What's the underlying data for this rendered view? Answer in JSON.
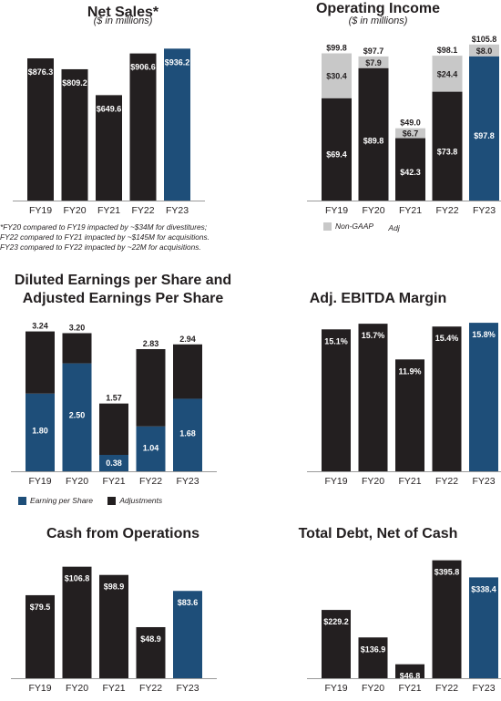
{
  "colors": {
    "dark": "#231f20",
    "blue": "#1e4e79",
    "adj": "#c8c8c8"
  },
  "net_sales": {
    "title": "Net Sales*",
    "subtitle": "($ in millions)",
    "footnotes": [
      "*FY20 compared to FY19 impacted by ~$34M for divestitures;",
      "FY22 compared to FY21 impacted by ~$145M for acquisitions.",
      "FY23 compared to FY22 impacted by ~22M for acquisitions."
    ]
  },
  "operating_income": {
    "title": "Operating Income",
    "subtitle": "($ in millions)",
    "legend": [
      "Non-GAAP",
      "Adj"
    ]
  },
  "eps": {
    "title_lines": [
      "Diluted Earnings per Share and",
      "Adjusted Earnings Per Share"
    ],
    "legend": [
      "Earning per Share",
      "Adjustments"
    ]
  },
  "ebitda": {
    "title": "Adj. EBITDA Margin"
  },
  "cash_ops": {
    "title": "Cash from Operations"
  },
  "debt": {
    "title": "Total Debt, Net of Cash"
  },
  "chart_data": [
    {
      "id": "net_sales",
      "type": "bar",
      "title": "Net Sales*",
      "subtitle": "($ in millions)",
      "categories": [
        "FY19",
        "FY20",
        "FY21",
        "FY22",
        "FY23"
      ],
      "values": [
        876.3,
        809.2,
        649.6,
        906.6,
        936.2
      ],
      "labels": [
        "$876.3",
        "$809.2",
        "$649.6",
        "$906.6",
        "$936.2"
      ],
      "ylim": [
        0,
        1000
      ],
      "highlight_last": true
    },
    {
      "id": "operating_income",
      "type": "bar",
      "stacked": true,
      "title": "Operating Income",
      "subtitle": "($ in millions)",
      "categories": [
        "FY19",
        "FY20",
        "FY21",
        "FY22",
        "FY23"
      ],
      "series": [
        {
          "values": [
            69.4,
            89.8,
            42.3,
            73.8,
            97.8
          ],
          "labels": [
            "$69.4",
            "$89.8",
            "$42.3",
            "$73.8",
            "$97.8"
          ]
        },
        {
          "values": [
            30.4,
            7.9,
            6.7,
            24.4,
            8.0
          ],
          "labels": [
            "$30.4",
            "$7.9",
            "$6.7",
            "$24.4",
            "$8.0"
          ]
        }
      ],
      "totals": [
        99.8,
        97.7,
        49.0,
        98.1,
        105.8
      ],
      "total_labels": [
        "$99.8",
        "$97.7",
        "$49.0",
        "$98.1",
        "$105.8"
      ],
      "ylim": [
        0,
        110
      ],
      "highlight_last": true
    },
    {
      "id": "eps",
      "type": "bar",
      "stacked": true,
      "title": "Diluted Earnings per Share and Adjusted Earnings Per Share",
      "categories": [
        "FY19",
        "FY20",
        "FY21",
        "FY22",
        "FY23"
      ],
      "series": [
        {
          "name": "Earning per Share",
          "values": [
            1.8,
            2.5,
            0.38,
            1.04,
            1.68
          ],
          "labels": [
            "1.80",
            "2.50",
            "0.38",
            "1.04",
            "1.68"
          ]
        },
        {
          "name": "Adjustments",
          "values": [
            1.44,
            0.7,
            1.19,
            1.79,
            1.26
          ]
        }
      ],
      "totals": [
        3.24,
        3.2,
        1.57,
        2.83,
        2.94
      ],
      "total_labels": [
        "3.24",
        "3.20",
        "1.57",
        "2.83",
        "2.94"
      ],
      "ylim": [
        0,
        3.4
      ],
      "legend_position": "bottom"
    },
    {
      "id": "ebitda",
      "type": "bar",
      "title": "Adj. EBITDA Margin",
      "categories": [
        "FY19",
        "FY20",
        "FY21",
        "FY22",
        "FY23"
      ],
      "values": [
        15.1,
        15.7,
        11.9,
        15.4,
        15.8
      ],
      "labels": [
        "15.1%",
        "15.7%",
        "11.9%",
        "15.4%",
        "15.8%"
      ],
      "ylim": [
        0,
        16.1
      ],
      "highlight_last": true
    },
    {
      "id": "cash_ops",
      "type": "bar",
      "title": "Cash from Operations",
      "categories": [
        "FY19",
        "FY20",
        "FY21",
        "FY22",
        "FY23"
      ],
      "values": [
        79.5,
        106.8,
        98.9,
        48.9,
        83.6
      ],
      "labels": [
        "$79.5",
        "$106.8",
        "$98.9",
        "$48.9",
        "$83.6"
      ],
      "ylim": [
        0,
        110
      ],
      "highlight_last": true
    },
    {
      "id": "debt",
      "type": "bar",
      "title": "Total Debt, Net of Cash",
      "categories": [
        "FY19",
        "FY20",
        "FY21",
        "FY22",
        "FY23"
      ],
      "values": [
        229.2,
        136.9,
        46.8,
        395.8,
        338.4
      ],
      "labels": [
        "$229.2",
        "$136.9",
        "$46.8",
        "$395.8",
        "$338.4"
      ],
      "ylim": [
        0,
        410
      ],
      "highlight_last": true
    }
  ]
}
